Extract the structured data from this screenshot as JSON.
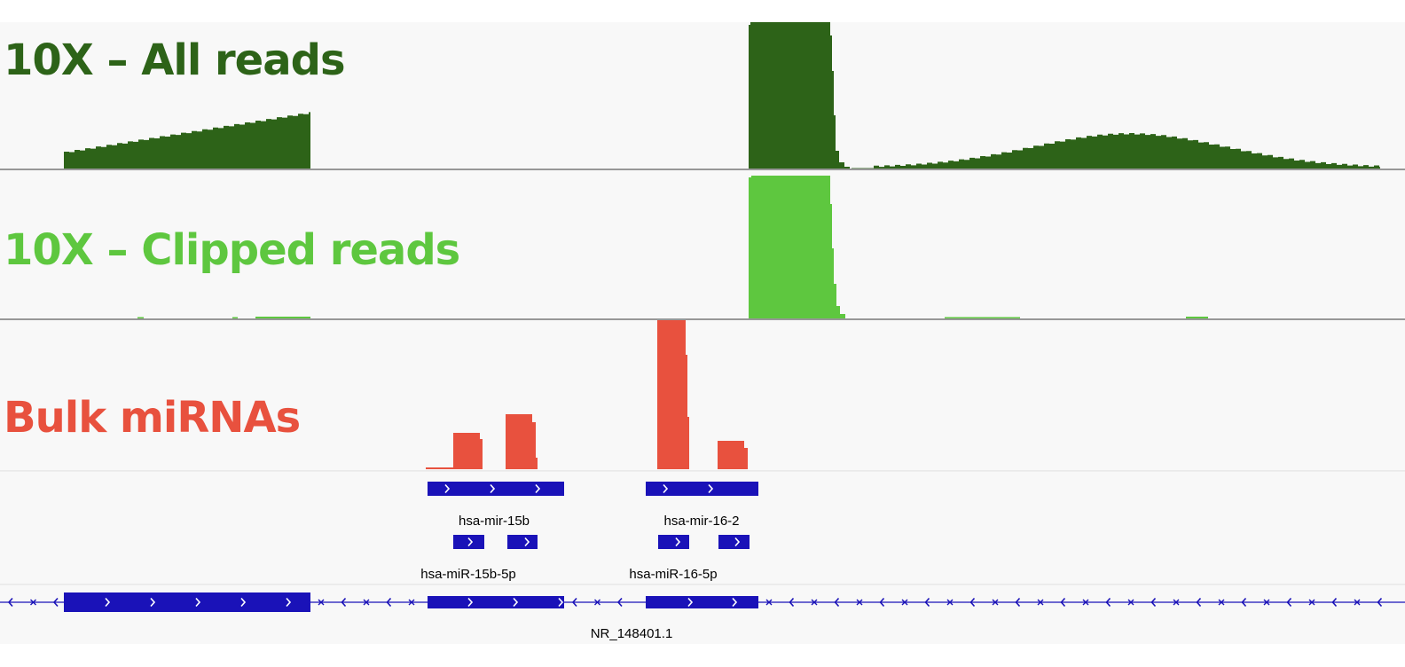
{
  "tracks": {
    "all_reads": {
      "label": "10X – All reads",
      "color": "#2d6318"
    },
    "clipped_reads": {
      "label": "10X – Clipped reads",
      "color": "#5ec73f"
    },
    "bulk_mirnas": {
      "label": "Bulk miRNAs",
      "color": "#e8513e"
    }
  },
  "features": {
    "color": "#1a12b8",
    "primary_transcripts": [
      {
        "name": "hsa-mir-15b"
      },
      {
        "name": "hsa-mir-16-2"
      }
    ],
    "mature_mirnas": [
      {
        "name": "hsa-miR-15b-5p"
      },
      {
        "name": "hsa-miR-16-5p"
      }
    ],
    "host_gene": {
      "name": "NR_148401.1"
    }
  }
}
